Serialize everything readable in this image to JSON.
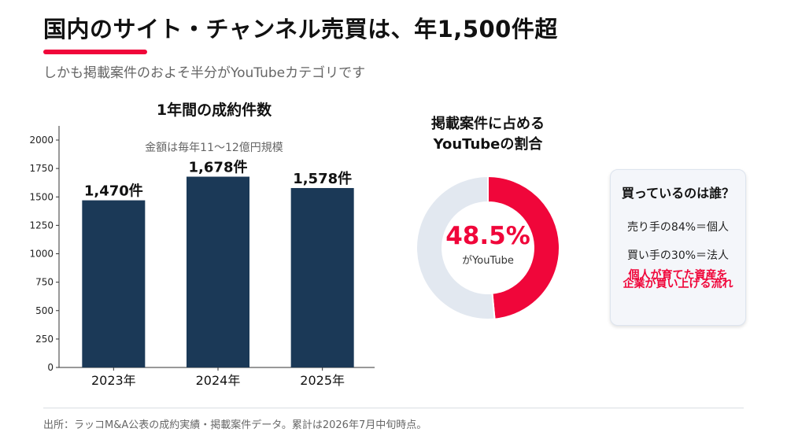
{
  "header": {
    "title": "国内のサイト・チャンネル売買は、年1,500件超",
    "subtitle": "しかも掲載案件のおよそ半分がYouTubeカテゴリです",
    "accent_color": "#f0063a"
  },
  "chart_data": [
    {
      "type": "bar",
      "title": "1年間の成約件数",
      "annotation": "金額は毎年11〜12億円規模",
      "categories": [
        "2023年",
        "2024年",
        "2025年"
      ],
      "values": [
        1470,
        1678,
        1578
      ],
      "data_labels": [
        "1,470件",
        "1,678件",
        "1,578件"
      ],
      "ylim": [
        0,
        2000
      ],
      "yticks": [
        0,
        250,
        500,
        750,
        1000,
        1250,
        1500,
        1750,
        2000
      ],
      "bar_color": "#1b3957",
      "grid": false
    },
    {
      "type": "pie",
      "title": "掲載案件に占める YouTubeの割合",
      "title_lines": [
        "掲載案件に占める",
        "YouTubeの割合"
      ],
      "values": [
        48.5,
        51.5
      ],
      "center_value": "48.5%",
      "center_label": "がYouTube",
      "colors": [
        "#f0063a",
        "#e2e8f0"
      ]
    }
  ],
  "info_box": {
    "heading": "買っているのは誰？",
    "line1": "売り手の84%＝個人",
    "line2": "買い手の30%＝法人",
    "accent_line1": "個人が育てた資産を",
    "accent_line2": "企業が買い上げる流れ"
  },
  "footer": {
    "source": "出所：ラッコM&A公表の成約実績・掲載案件データ。累計は2026年7月中旬時点。"
  }
}
